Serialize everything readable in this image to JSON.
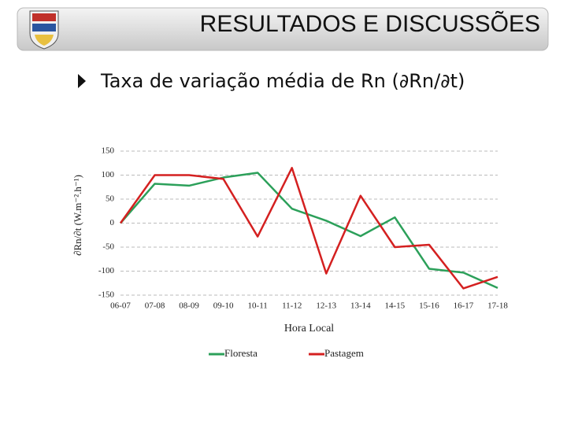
{
  "header": {
    "title": "RESULTADOS E DISCUSSÕES"
  },
  "bullet": "Taxa de variação média de Rn (∂Rn/∂t)",
  "chart_data": {
    "type": "line",
    "x_label": "Hora Local",
    "y_label": "∂Rn/∂t (W.m⁻².h⁻¹)",
    "categories": [
      "06-07",
      "07-08",
      "08-09",
      "09-10",
      "10-11",
      "11-12",
      "12-13",
      "13-14",
      "14-15",
      "15-16",
      "16-17",
      "17-18"
    ],
    "series": [
      {
        "name": "Floresta",
        "color": "#2ca05a",
        "values": [
          0,
          82,
          78,
          95,
          105,
          30,
          5,
          -27,
          12,
          -95,
          -103,
          -135
        ]
      },
      {
        "name": "Pastagem",
        "color": "#d42020",
        "values": [
          0,
          100,
          100,
          92,
          -28,
          115,
          -105,
          57,
          -50,
          -45,
          -136,
          -112
        ]
      }
    ],
    "ylim": [
      -150,
      150
    ],
    "yticks": [
      -150,
      -100,
      -50,
      0,
      50,
      100,
      150
    ],
    "grid": true,
    "legend": "bottom"
  }
}
